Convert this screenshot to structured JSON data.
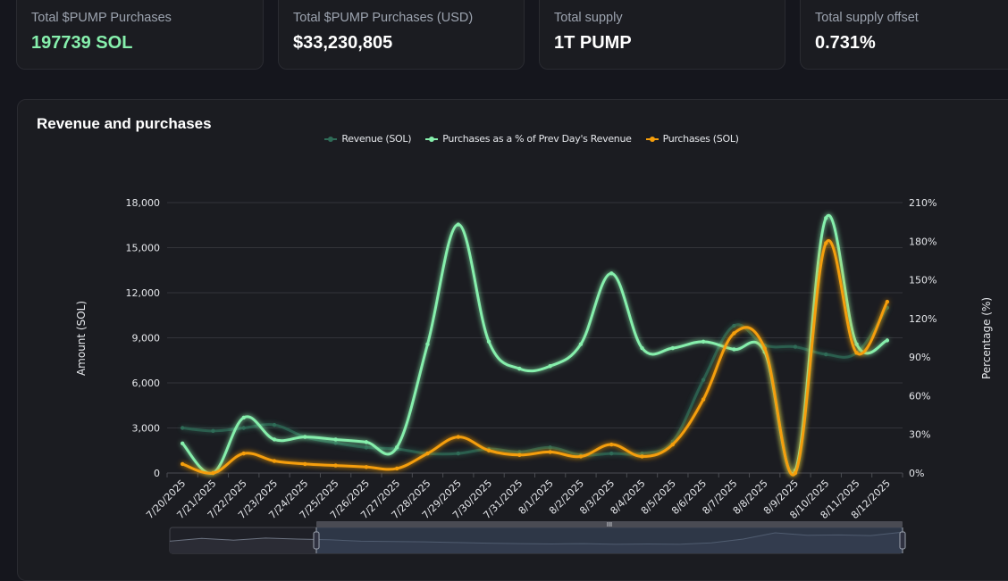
{
  "stats": [
    {
      "label": "Total $PUMP Purchases",
      "value": "197739 SOL",
      "accent": "#86efac"
    },
    {
      "label": "Total $PUMP Purchases (USD)",
      "value": "$33,230,805"
    },
    {
      "label": "Total supply",
      "value": "1T PUMP"
    },
    {
      "label": "Total supply offset",
      "value": "0.731%"
    }
  ],
  "panel": {
    "title": "Revenue and purchases"
  },
  "chart_data": {
    "type": "line",
    "title": "Revenue and purchases",
    "ylabel": "Amount (SOL)",
    "y2label": "Percentage (%)",
    "ylim": [
      0,
      18000
    ],
    "y2lim": [
      0,
      210
    ],
    "yticks": [
      "0",
      "3,000",
      "6,000",
      "9,000",
      "12,000",
      "15,000",
      "18,000"
    ],
    "y2ticks": [
      "0%",
      "30%",
      "60%",
      "90%",
      "120%",
      "150%",
      "180%",
      "210%"
    ],
    "grid": true,
    "legend_position": "top-center",
    "categories": [
      "7/20/2025",
      "7/21/2025",
      "7/22/2025",
      "7/23/2025",
      "7/24/2025",
      "7/25/2025",
      "7/26/2025",
      "7/27/2025",
      "7/28/2025",
      "7/29/2025",
      "7/30/2025",
      "7/31/2025",
      "8/1/2025",
      "8/2/2025",
      "8/3/2025",
      "8/4/2025",
      "8/5/2025",
      "8/6/2025",
      "8/7/2025",
      "8/8/2025",
      "8/9/2025",
      "8/10/2025",
      "8/11/2025",
      "8/12/2025"
    ],
    "series": [
      {
        "name": "Revenue (SOL)",
        "axis": "left",
        "color": "#2f6b57",
        "values": [
          3000,
          2800,
          3000,
          3200,
          2400,
          2000,
          1700,
          1600,
          1300,
          1300,
          1600,
          1400,
          1700,
          1200,
          1300,
          1300,
          2100,
          6200,
          9800,
          8500,
          8400,
          7900,
          8000,
          11000
        ]
      },
      {
        "name": "Purchases as a % of Prev Day's Revenue",
        "axis": "right",
        "color": "#86efac",
        "values": [
          23,
          0,
          43,
          26,
          28,
          26,
          24,
          20,
          100,
          193,
          102,
          81,
          83,
          100,
          155,
          97,
          97,
          102,
          96,
          94,
          2,
          198,
          100,
          103
        ]
      },
      {
        "name": "Purchases (SOL)",
        "axis": "left",
        "color": "#f59e0b",
        "values": [
          600,
          0,
          1300,
          800,
          600,
          500,
          400,
          300,
          1300,
          2400,
          1500,
          1200,
          1400,
          1100,
          1900,
          1100,
          1900,
          4900,
          9300,
          8300,
          0,
          15300,
          8000,
          11400
        ]
      }
    ]
  },
  "slider": {
    "handle_label": "III",
    "range_start": 0.2,
    "range_end": 1.0,
    "preview": [
      3000,
      3800,
      3300,
      3900,
      3600,
      3400,
      3000,
      2900,
      2800,
      2600,
      2400,
      2300,
      2200,
      2300,
      2100,
      2200,
      2100,
      2500,
      3600,
      5400,
      4700,
      4800,
      4600,
      5600
    ]
  }
}
